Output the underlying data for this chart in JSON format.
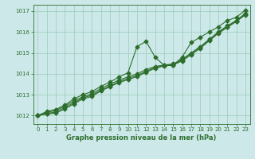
{
  "title": "Graphe pression niveau de la mer (hPa)",
  "bg_color": "#cce8e8",
  "grid_color": "#99ccbb",
  "line_color": "#2d6e2d",
  "xlim": [
    -0.5,
    23.5
  ],
  "ylim": [
    1011.6,
    1017.3
  ],
  "xticks": [
    0,
    1,
    2,
    3,
    4,
    5,
    6,
    7,
    8,
    9,
    10,
    11,
    12,
    13,
    14,
    15,
    16,
    17,
    18,
    19,
    20,
    21,
    22,
    23
  ],
  "yticks": [
    1012,
    1013,
    1014,
    1015,
    1016,
    1017
  ],
  "series": [
    [
      1012.0,
      1012.2,
      1012.3,
      1012.5,
      1012.8,
      1013.0,
      1013.15,
      1013.4,
      1013.6,
      1013.85,
      1014.05,
      1015.3,
      1015.55,
      1014.8,
      1014.4,
      1014.4,
      1014.8,
      1015.5,
      1015.75,
      1016.0,
      1016.25,
      1016.55,
      1016.7,
      1017.05
    ],
    [
      1012.0,
      1012.15,
      1012.25,
      1012.45,
      1012.7,
      1012.9,
      1013.05,
      1013.3,
      1013.5,
      1013.7,
      1013.85,
      1014.0,
      1014.2,
      1014.35,
      1014.42,
      1014.47,
      1014.7,
      1015.0,
      1015.3,
      1015.65,
      1016.0,
      1016.3,
      1016.55,
      1016.9
    ],
    [
      1012.0,
      1012.1,
      1012.18,
      1012.38,
      1012.62,
      1012.85,
      1012.98,
      1013.22,
      1013.42,
      1013.62,
      1013.78,
      1013.92,
      1014.12,
      1014.3,
      1014.4,
      1014.45,
      1014.65,
      1014.95,
      1015.25,
      1015.62,
      1015.97,
      1016.25,
      1016.52,
      1016.85
    ],
    [
      1012.0,
      1012.08,
      1012.12,
      1012.32,
      1012.56,
      1012.8,
      1012.92,
      1013.18,
      1013.38,
      1013.58,
      1013.72,
      1013.87,
      1014.07,
      1014.27,
      1014.37,
      1014.42,
      1014.62,
      1014.92,
      1015.22,
      1015.58,
      1015.93,
      1016.22,
      1016.5,
      1016.82
    ]
  ],
  "marker": "D",
  "markersize": 2.5,
  "linewidth": 0.8,
  "tick_fontsize": 5.0,
  "label_fontsize": 6.0,
  "figsize": [
    3.2,
    2.0
  ],
  "dpi": 100
}
